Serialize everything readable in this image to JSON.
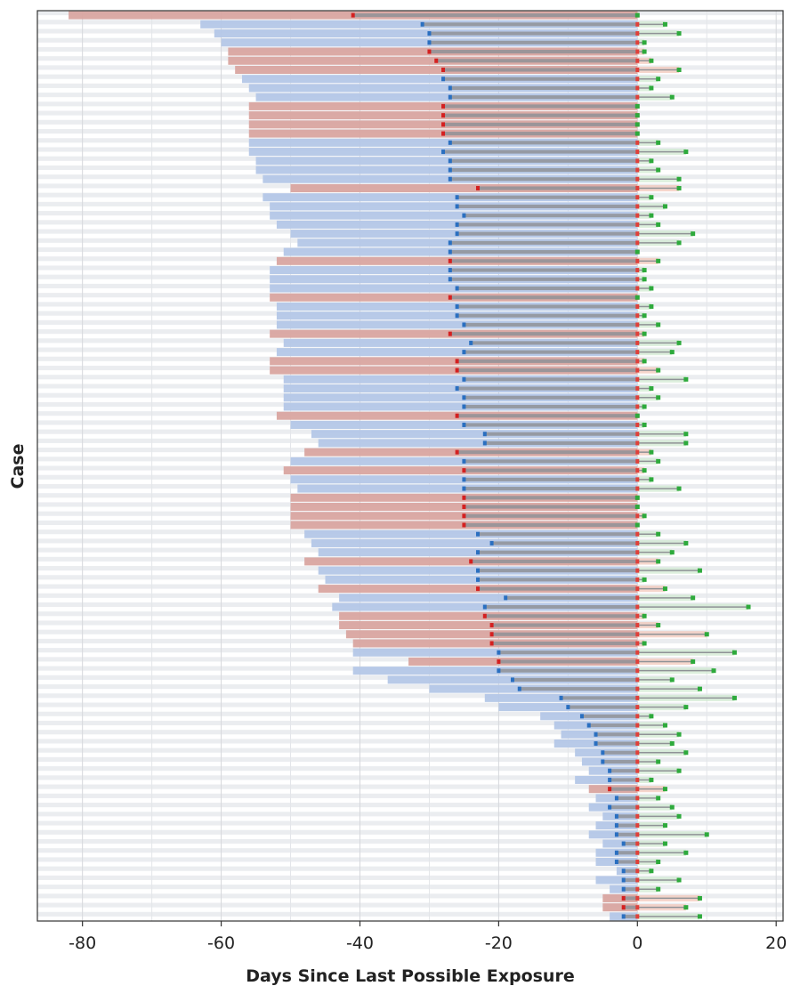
{
  "chart_data": {
    "type": "bar",
    "title": "",
    "xlabel": "Days Since Last Possible Exposure",
    "ylabel": "Case",
    "xlim": [
      -86.5,
      21
    ],
    "xticks": [
      -80,
      -60,
      -40,
      -20,
      0,
      20
    ],
    "grid": true,
    "legend": "none",
    "colors": {
      "blue_bar": "#b4c7e7",
      "red_bar": "#d9a5a0",
      "gray_interval": "#8f9296",
      "onset_blue": "#2a6fc0",
      "onset_red": "#d42020",
      "end_green": "#2eaa3c",
      "row_stripe": "#ebedf0"
    },
    "row_fields": [
      "exposure_start",
      "onset",
      "end",
      "group"
    ],
    "rows": [
      [
        -82,
        -41,
        0,
        "r"
      ],
      [
        -63,
        -31,
        4,
        "b"
      ],
      [
        -61,
        -30,
        6,
        "b"
      ],
      [
        -60,
        -30,
        1,
        "b"
      ],
      [
        -59,
        -30,
        1,
        "r"
      ],
      [
        -59,
        -29,
        2,
        "r"
      ],
      [
        -58,
        -28,
        6,
        "r"
      ],
      [
        -57,
        -28,
        3,
        "b"
      ],
      [
        -56,
        -27,
        2,
        "b"
      ],
      [
        -55,
        -27,
        5,
        "b"
      ],
      [
        -56,
        -28,
        0,
        "r"
      ],
      [
        -56,
        -28,
        0,
        "r"
      ],
      [
        -56,
        -28,
        0,
        "r"
      ],
      [
        -56,
        -28,
        0,
        "r"
      ],
      [
        -56,
        -27,
        3,
        "b"
      ],
      [
        -56,
        -28,
        7,
        "b"
      ],
      [
        -55,
        -27,
        2,
        "b"
      ],
      [
        -55,
        -27,
        3,
        "b"
      ],
      [
        -54,
        -27,
        6,
        "b"
      ],
      [
        -50,
        -23,
        6,
        "r"
      ],
      [
        -54,
        -26,
        2,
        "b"
      ],
      [
        -53,
        -26,
        4,
        "b"
      ],
      [
        -53,
        -25,
        2,
        "b"
      ],
      [
        -52,
        -26,
        3,
        "b"
      ],
      [
        -50,
        -26,
        8,
        "b"
      ],
      [
        -49,
        -27,
        6,
        "b"
      ],
      [
        -51,
        -27,
        0,
        "b"
      ],
      [
        -52,
        -27,
        3,
        "r"
      ],
      [
        -53,
        -27,
        1,
        "b"
      ],
      [
        -53,
        -27,
        1,
        "b"
      ],
      [
        -53,
        -26,
        2,
        "b"
      ],
      [
        -53,
        -27,
        0,
        "r"
      ],
      [
        -52,
        -26,
        2,
        "b"
      ],
      [
        -52,
        -26,
        1,
        "b"
      ],
      [
        -52,
        -25,
        3,
        "b"
      ],
      [
        -53,
        -27,
        1,
        "r"
      ],
      [
        -51,
        -24,
        6,
        "b"
      ],
      [
        -52,
        -25,
        5,
        "b"
      ],
      [
        -53,
        -26,
        1,
        "r"
      ],
      [
        -53,
        -26,
        3,
        "r"
      ],
      [
        -51,
        -25,
        7,
        "b"
      ],
      [
        -51,
        -26,
        2,
        "b"
      ],
      [
        -51,
        -25,
        3,
        "b"
      ],
      [
        -51,
        -25,
        1,
        "b"
      ],
      [
        -52,
        -26,
        0,
        "r"
      ],
      [
        -50,
        -25,
        1,
        "b"
      ],
      [
        -47,
        -22,
        7,
        "b"
      ],
      [
        -46,
        -22,
        7,
        "b"
      ],
      [
        -48,
        -26,
        2,
        "r"
      ],
      [
        -50,
        -25,
        3,
        "b"
      ],
      [
        -51,
        -25,
        1,
        "r"
      ],
      [
        -50,
        -25,
        2,
        "b"
      ],
      [
        -49,
        -25,
        6,
        "b"
      ],
      [
        -50,
        -25,
        0,
        "r"
      ],
      [
        -50,
        -25,
        0,
        "r"
      ],
      [
        -50,
        -25,
        1,
        "r"
      ],
      [
        -50,
        -25,
        0,
        "r"
      ],
      [
        -48,
        -23,
        3,
        "b"
      ],
      [
        -47,
        -21,
        7,
        "b"
      ],
      [
        -46,
        -23,
        5,
        "b"
      ],
      [
        -48,
        -24,
        3,
        "r"
      ],
      [
        -46,
        -23,
        9,
        "b"
      ],
      [
        -45,
        -23,
        1,
        "b"
      ],
      [
        -46,
        -23,
        4,
        "r"
      ],
      [
        -43,
        -19,
        8,
        "b"
      ],
      [
        -44,
        -22,
        16,
        "b"
      ],
      [
        -43,
        -22,
        1,
        "r"
      ],
      [
        -43,
        -21,
        3,
        "r"
      ],
      [
        -42,
        -21,
        10,
        "r"
      ],
      [
        -41,
        -21,
        1,
        "r"
      ],
      [
        -41,
        -20,
        14,
        "b"
      ],
      [
        -33,
        -20,
        8,
        "r"
      ],
      [
        -41,
        -20,
        11,
        "b"
      ],
      [
        -36,
        -18,
        5,
        "b"
      ],
      [
        -30,
        -17,
        9,
        "b"
      ],
      [
        -22,
        -11,
        14,
        "b"
      ],
      [
        -20,
        -10,
        7,
        "b"
      ],
      [
        -14,
        -8,
        2,
        "b"
      ],
      [
        -12,
        -7,
        4,
        "b"
      ],
      [
        -11,
        -6,
        6,
        "b"
      ],
      [
        -12,
        -6,
        5,
        "b"
      ],
      [
        -9,
        -5,
        7,
        "b"
      ],
      [
        -8,
        -5,
        3,
        "b"
      ],
      [
        -7,
        -4,
        6,
        "b"
      ],
      [
        -9,
        -4,
        2,
        "b"
      ],
      [
        -7,
        -4,
        4,
        "r"
      ],
      [
        -6,
        -3,
        3,
        "b"
      ],
      [
        -7,
        -4,
        5,
        "b"
      ],
      [
        -5,
        -3,
        6,
        "b"
      ],
      [
        -6,
        -3,
        4,
        "b"
      ],
      [
        -7,
        -3,
        10,
        "b"
      ],
      [
        -5,
        -2,
        4,
        "b"
      ],
      [
        -6,
        -3,
        7,
        "b"
      ],
      [
        -6,
        -3,
        3,
        "b"
      ],
      [
        -3,
        -2,
        2,
        "b"
      ],
      [
        -6,
        -2,
        6,
        "b"
      ],
      [
        -4,
        -2,
        3,
        "b"
      ],
      [
        -5,
        -2,
        9,
        "r"
      ],
      [
        -5,
        -2,
        7,
        "r"
      ],
      [
        -4,
        -2,
        9,
        "b"
      ]
    ]
  }
}
